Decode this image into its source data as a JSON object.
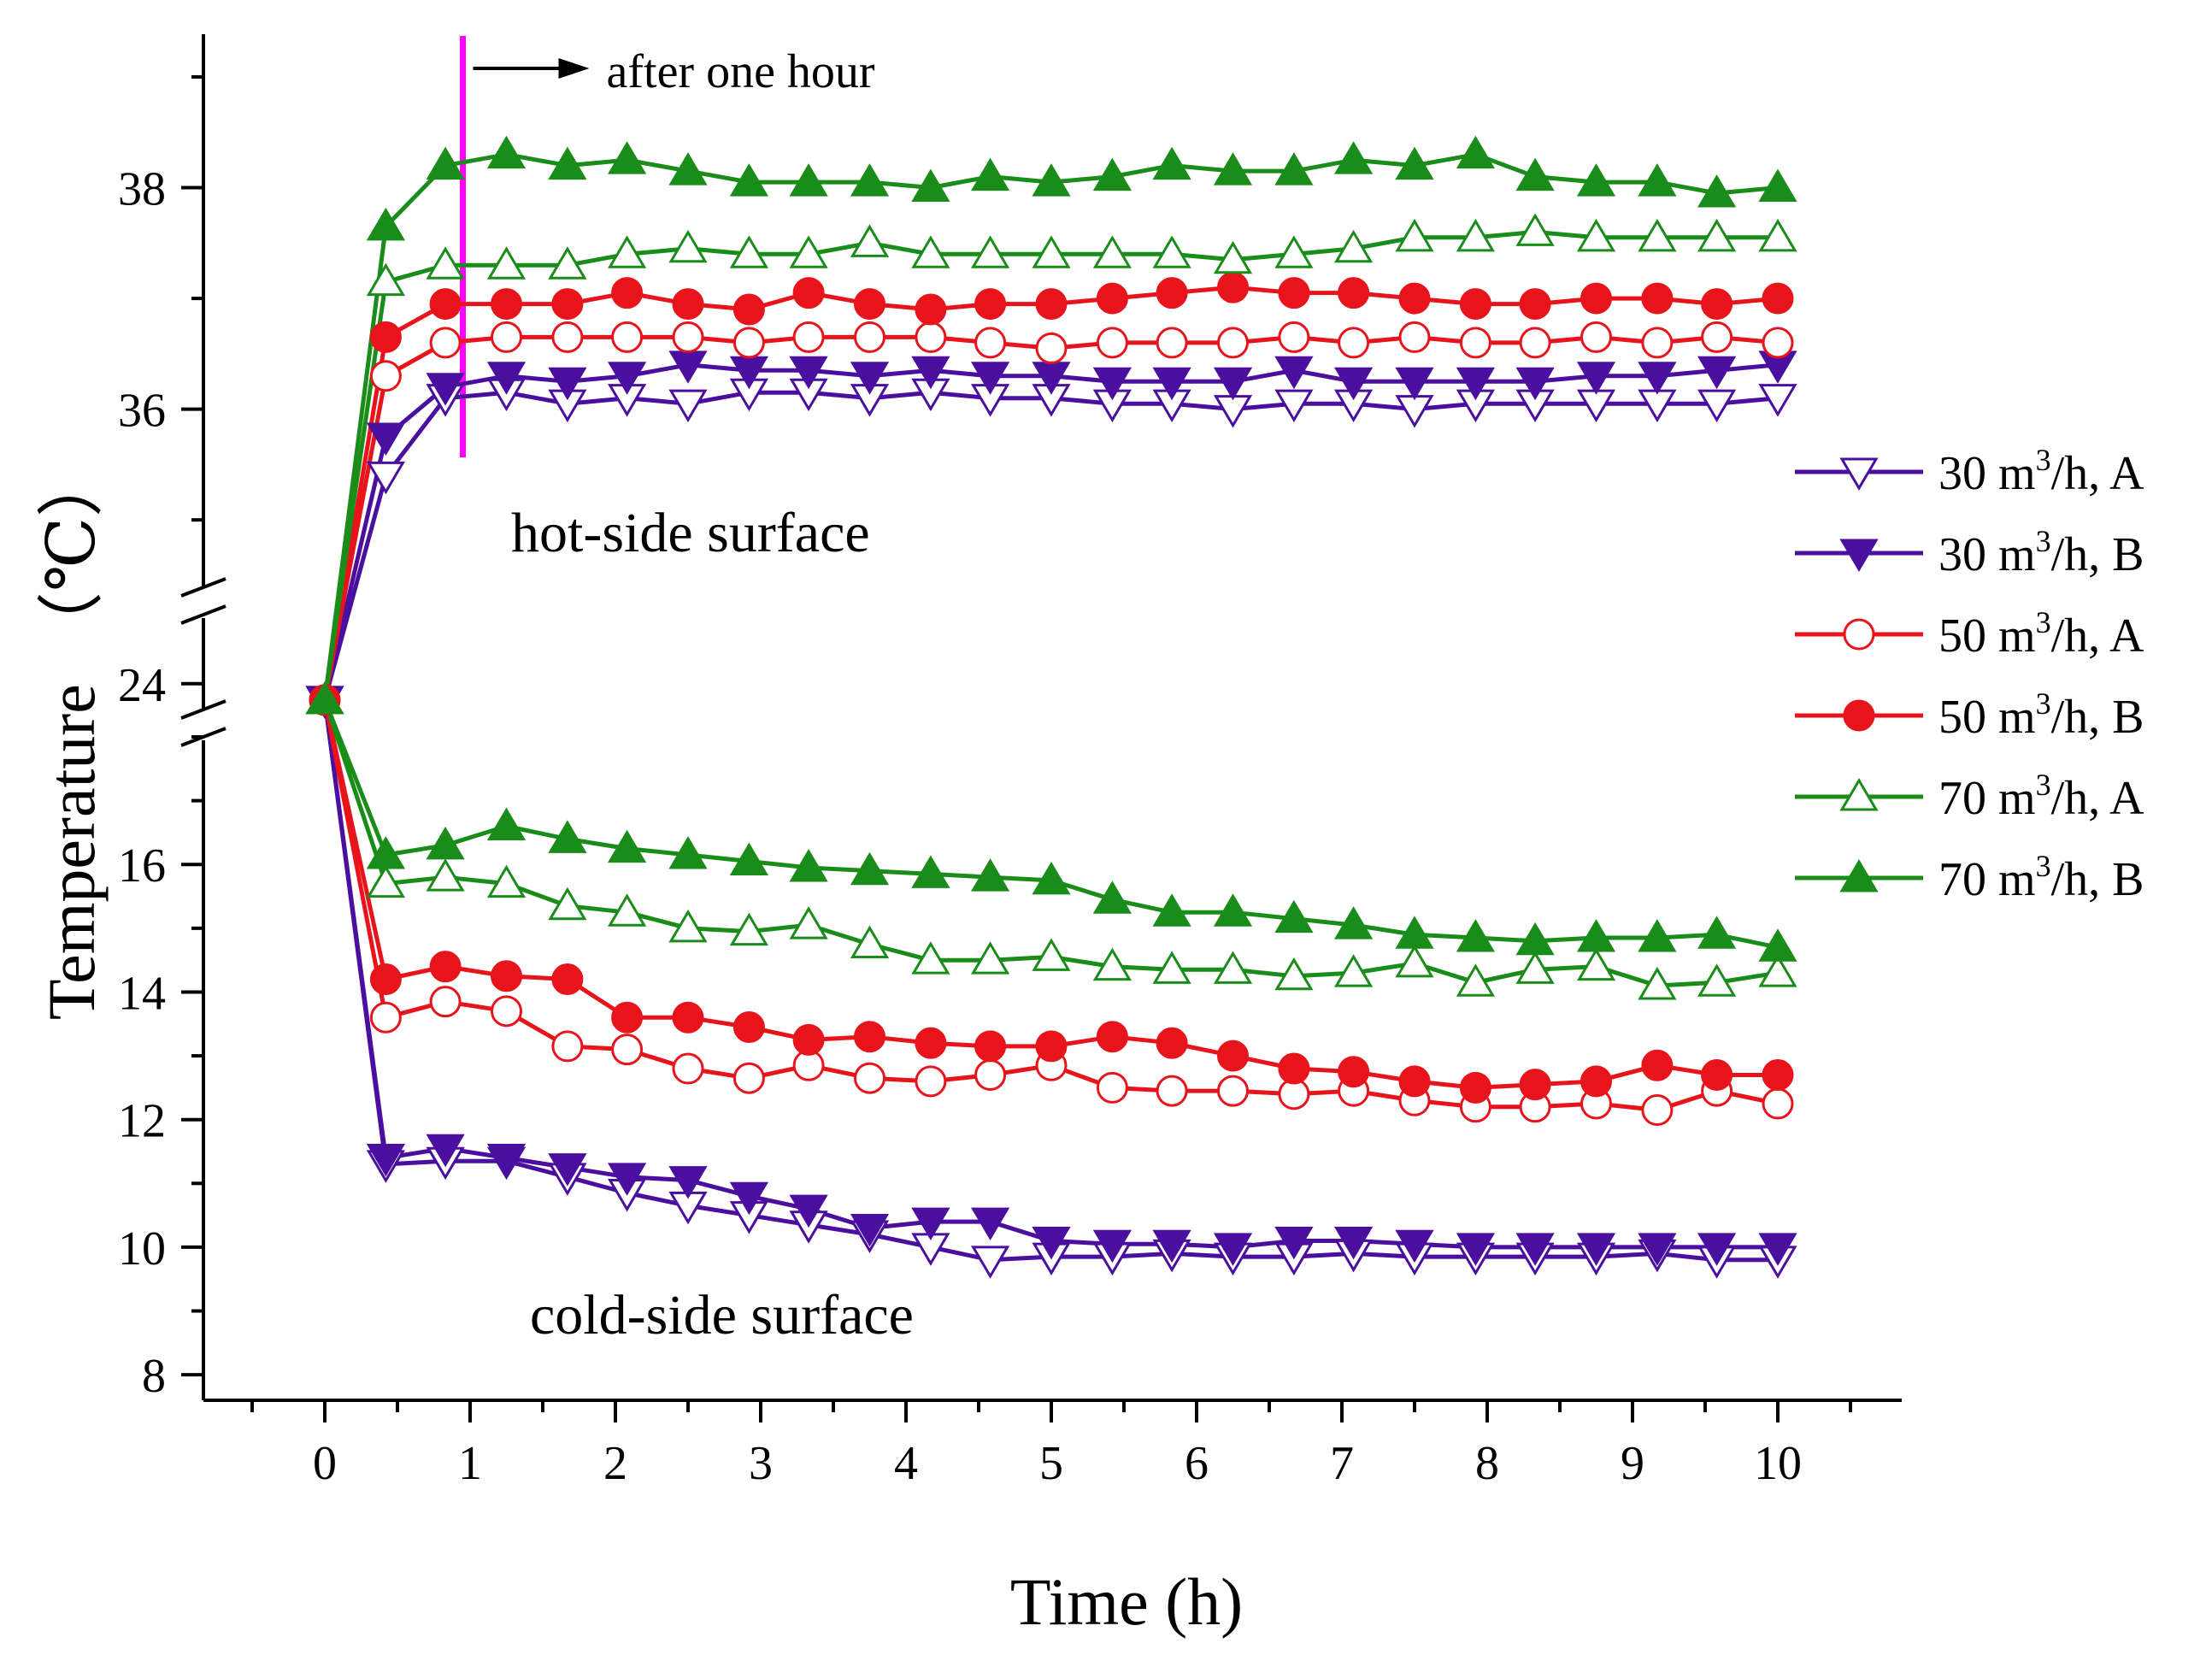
{
  "chart_data": {
    "type": "line",
    "xlabel": "Time (h)",
    "ylabel": "Temperature",
    "ylabel_unit": "（℃）",
    "xlim": [
      -0.8,
      10.8
    ],
    "x_ticks": [
      "0",
      "1",
      "2",
      "3",
      "4",
      "5",
      "6",
      "7",
      "8",
      "9",
      "10"
    ],
    "axis_break": true,
    "y_segments": [
      {
        "name": "hot",
        "range": [
          34.6,
          39.0
        ],
        "ticks": [
          "36",
          "38"
        ]
      },
      {
        "name": "mid",
        "range": [
          23.6,
          24.5
        ],
        "ticks": [
          "24"
        ]
      },
      {
        "name": "cold",
        "range": [
          7.6,
          18.0
        ],
        "ticks": [
          "8",
          "10",
          "12",
          "14",
          "16"
        ]
      }
    ],
    "annotations": {
      "hot_label": "hot-side surface",
      "cold_label": "cold-side surface",
      "arrow_label": "after one hour",
      "marker_time": 0.95,
      "marker_color": "#ff00ff"
    },
    "legend_position": "right",
    "x": [
      0,
      0.42,
      0.83,
      1.25,
      1.67,
      2.08,
      2.5,
      2.92,
      3.33,
      3.75,
      4.17,
      4.58,
      5.0,
      5.42,
      5.83,
      6.25,
      6.67,
      7.08,
      7.5,
      7.92,
      8.33,
      8.75,
      9.17,
      9.58,
      10.0
    ],
    "series": [
      {
        "name": "30 m3/h, A",
        "label_prefix": "30 m",
        "label_sup": "3",
        "label_suffix": "/h, A",
        "color": "#4b0fa0",
        "marker": "triangle-down",
        "filled": false,
        "hot": [
          23.8,
          35.4,
          36.1,
          36.15,
          36.05,
          36.1,
          36.05,
          36.15,
          36.15,
          36.1,
          36.15,
          36.1,
          36.1,
          36.05,
          36.05,
          36.0,
          36.05,
          36.05,
          36.0,
          36.05,
          36.05,
          36.05,
          36.05,
          36.05,
          36.1
        ],
        "cold": [
          23.8,
          11.3,
          11.35,
          11.35,
          11.1,
          10.85,
          10.65,
          10.5,
          10.35,
          10.2,
          10.0,
          9.8,
          9.85,
          9.85,
          9.9,
          9.85,
          9.85,
          9.9,
          9.85,
          9.85,
          9.85,
          9.85,
          9.9,
          9.8,
          9.8
        ]
      },
      {
        "name": "30 m3/h, B",
        "label_prefix": "30 m",
        "label_sup": "3",
        "label_suffix": "/h, B",
        "color": "#4b0fa0",
        "marker": "triangle-down",
        "filled": true,
        "hot": [
          23.8,
          35.75,
          36.2,
          36.3,
          36.25,
          36.3,
          36.4,
          36.35,
          36.35,
          36.3,
          36.35,
          36.3,
          36.3,
          36.25,
          36.25,
          36.25,
          36.35,
          36.25,
          36.25,
          36.25,
          36.25,
          36.3,
          36.3,
          36.35,
          36.4
        ],
        "cold": [
          23.8,
          11.4,
          11.55,
          11.4,
          11.25,
          11.1,
          11.05,
          10.8,
          10.6,
          10.3,
          10.4,
          10.4,
          10.1,
          10.05,
          10.05,
          10.0,
          10.1,
          10.1,
          10.05,
          10.0,
          10.0,
          10.0,
          10.0,
          10.0,
          10.0
        ]
      },
      {
        "name": "50 m3/h, A",
        "label_prefix": "50 m",
        "label_sup": "3",
        "label_suffix": "/h, A",
        "color": "#e8141b",
        "marker": "circle",
        "filled": false,
        "hot": [
          23.8,
          36.3,
          36.6,
          36.65,
          36.65,
          36.65,
          36.65,
          36.6,
          36.65,
          36.65,
          36.65,
          36.6,
          36.55,
          36.6,
          36.6,
          36.6,
          36.65,
          36.6,
          36.65,
          36.6,
          36.6,
          36.65,
          36.6,
          36.65,
          36.6
        ],
        "cold": [
          23.8,
          13.6,
          13.85,
          13.7,
          13.15,
          13.1,
          12.8,
          12.65,
          12.85,
          12.65,
          12.6,
          12.7,
          12.85,
          12.5,
          12.45,
          12.45,
          12.4,
          12.45,
          12.3,
          12.2,
          12.2,
          12.25,
          12.15,
          12.45,
          12.25
        ]
      },
      {
        "name": "50 m3/h, B",
        "label_prefix": "50 m",
        "label_sup": "3",
        "label_suffix": "/h, B",
        "color": "#e8141b",
        "marker": "circle",
        "filled": true,
        "hot": [
          23.8,
          36.65,
          36.95,
          36.95,
          36.95,
          37.05,
          36.95,
          36.9,
          37.05,
          36.95,
          36.9,
          36.95,
          36.95,
          37.0,
          37.05,
          37.1,
          37.05,
          37.05,
          37.0,
          36.95,
          36.95,
          37.0,
          37.0,
          36.95,
          37.0
        ],
        "cold": [
          23.8,
          14.2,
          14.4,
          14.25,
          14.2,
          13.6,
          13.6,
          13.45,
          13.25,
          13.3,
          13.2,
          13.15,
          13.15,
          13.3,
          13.2,
          13.0,
          12.8,
          12.75,
          12.6,
          12.5,
          12.55,
          12.6,
          12.85,
          12.7,
          12.7
        ]
      },
      {
        "name": "70 m3/h, A",
        "label_prefix": "70 m",
        "label_sup": "3",
        "label_suffix": "/h, A",
        "color": "#1a8c1a",
        "marker": "triangle-up",
        "filled": false,
        "hot": [
          23.8,
          37.15,
          37.3,
          37.3,
          37.3,
          37.4,
          37.45,
          37.4,
          37.4,
          37.5,
          37.4,
          37.4,
          37.4,
          37.4,
          37.4,
          37.35,
          37.4,
          37.45,
          37.55,
          37.55,
          37.6,
          37.55,
          37.55,
          37.55,
          37.55
        ],
        "cold": [
          23.8,
          15.7,
          15.8,
          15.7,
          15.35,
          15.25,
          15.0,
          14.95,
          15.05,
          14.75,
          14.5,
          14.5,
          14.55,
          14.4,
          14.35,
          14.35,
          14.25,
          14.3,
          14.45,
          14.15,
          14.35,
          14.4,
          14.1,
          14.15,
          14.3
        ]
      },
      {
        "name": "70 m3/h, B",
        "label_prefix": "70 m",
        "label_sup": "3",
        "label_suffix": "/h, B",
        "color": "#1a8c1a",
        "marker": "triangle-up",
        "filled": true,
        "hot": [
          23.8,
          37.65,
          38.2,
          38.3,
          38.2,
          38.25,
          38.15,
          38.05,
          38.05,
          38.05,
          38.0,
          38.1,
          38.05,
          38.1,
          38.2,
          38.15,
          38.15,
          38.25,
          38.2,
          38.3,
          38.1,
          38.05,
          38.05,
          37.95,
          38.0
        ],
        "cold": [
          23.8,
          16.15,
          16.3,
          16.6,
          16.4,
          16.25,
          16.15,
          16.05,
          15.95,
          15.9,
          15.85,
          15.8,
          15.75,
          15.45,
          15.25,
          15.25,
          15.15,
          15.05,
          14.9,
          14.85,
          14.8,
          14.85,
          14.85,
          14.9,
          14.7
        ]
      }
    ]
  }
}
